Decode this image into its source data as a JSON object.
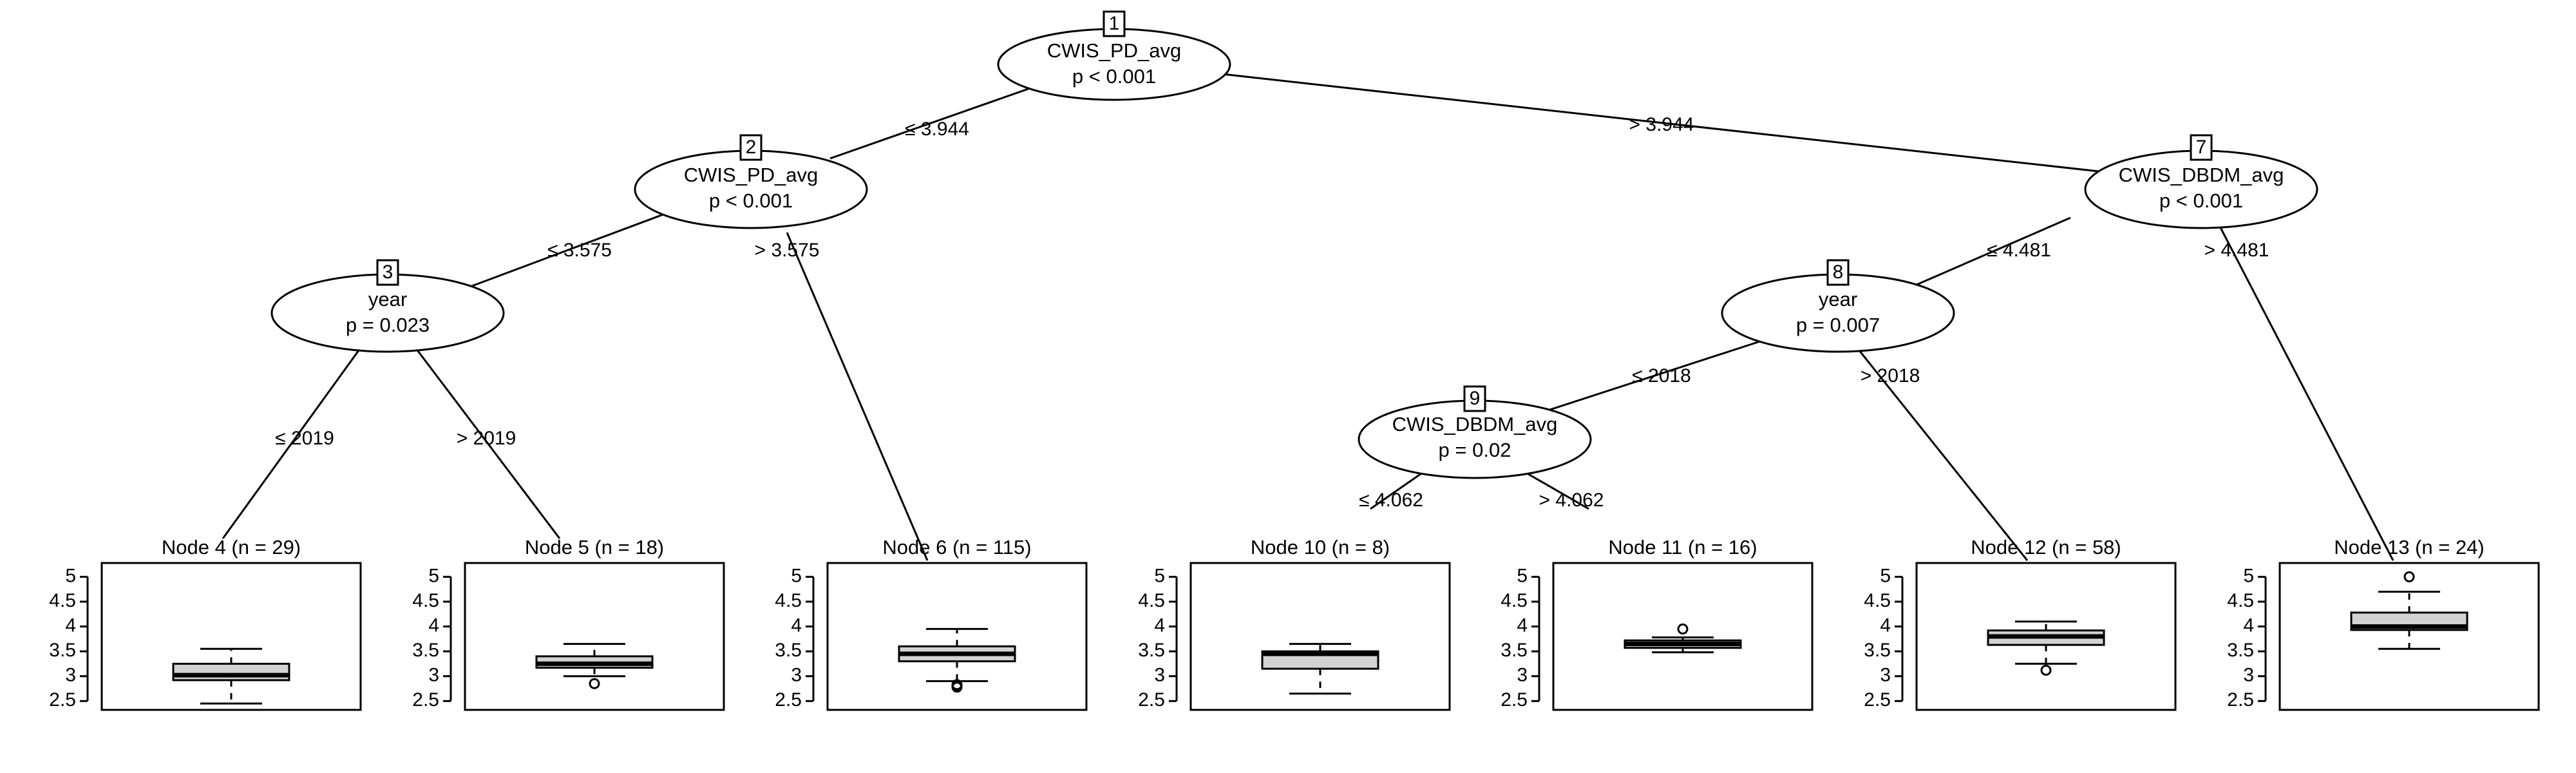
{
  "tree": {
    "colors": {
      "line": "#000000",
      "box_fill": "#d3d3d3",
      "background": "#ffffff"
    },
    "inner_nodes": [
      {
        "id": "1",
        "variable": "CWIS_PD_avg",
        "pvalue": "p < 0.001"
      },
      {
        "id": "2",
        "variable": "CWIS_PD_avg",
        "pvalue": "p < 0.001"
      },
      {
        "id": "3",
        "variable": "year",
        "pvalue": "p = 0.023"
      },
      {
        "id": "7",
        "variable": "CWIS_DBDM_avg",
        "pvalue": "p < 0.001"
      },
      {
        "id": "8",
        "variable": "year",
        "pvalue": "p = 0.007"
      },
      {
        "id": "9",
        "variable": "CWIS_DBDM_avg",
        "pvalue": "p = 0.02"
      }
    ],
    "edges": [
      {
        "from": "1",
        "to": "2",
        "label": "≤ 3.944"
      },
      {
        "from": "1",
        "to": "7",
        "label": "> 3.944"
      },
      {
        "from": "2",
        "to": "3",
        "label": "≤ 3.575"
      },
      {
        "from": "2",
        "to": "6",
        "label": "> 3.575"
      },
      {
        "from": "3",
        "to": "4",
        "label": "≤ 2019"
      },
      {
        "from": "3",
        "to": "5",
        "label": "> 2019"
      },
      {
        "from": "7",
        "to": "8",
        "label": "≤ 4.481"
      },
      {
        "from": "7",
        "to": "13",
        "label": "> 4.481"
      },
      {
        "from": "8",
        "to": "9",
        "label": "≤ 2018"
      },
      {
        "from": "8",
        "to": "12",
        "label": "> 2018"
      },
      {
        "from": "9",
        "to": "10",
        "label": "≤ 4.062"
      },
      {
        "from": "9",
        "to": "11",
        "label": "> 4.062"
      }
    ],
    "y_axis": {
      "ylim": [
        2.4,
        5.2
      ],
      "ticks": [
        2.5,
        3,
        3.5,
        4,
        4.5,
        5
      ],
      "tick_labels": [
        "2.5",
        "3",
        "3.5",
        "4",
        "4.5",
        "5"
      ]
    }
  },
  "chart_data": {
    "type": "boxplot",
    "ylim": [
      2.4,
      5.2
    ],
    "terminal_nodes": [
      {
        "node": "4",
        "title": "Node 4 (n = 29)",
        "n": 29,
        "low": 2.45,
        "q1": 2.92,
        "median": 3.02,
        "q3": 3.25,
        "high": 3.55,
        "outliers": []
      },
      {
        "node": "5",
        "title": "Node 5 (n = 18)",
        "n": 18,
        "low": 3.0,
        "q1": 3.17,
        "median": 3.25,
        "q3": 3.4,
        "high": 3.65,
        "outliers": [
          2.85
        ]
      },
      {
        "node": "6",
        "title": "Node 6 (n = 115)",
        "n": 115,
        "low": 2.9,
        "q1": 3.3,
        "median": 3.45,
        "q3": 3.6,
        "high": 3.95,
        "outliers": [
          2.83,
          2.8,
          2.78
        ]
      },
      {
        "node": "10",
        "title": "Node 10 (n = 8)",
        "n": 8,
        "low": 2.65,
        "q1": 3.15,
        "median": 3.45,
        "q3": 3.5,
        "high": 3.65,
        "outliers": []
      },
      {
        "node": "11",
        "title": "Node 11 (n = 16)",
        "n": 16,
        "low": 3.48,
        "q1": 3.57,
        "median": 3.65,
        "q3": 3.72,
        "high": 3.78,
        "outliers": [
          3.95
        ]
      },
      {
        "node": "12",
        "title": "Node 12 (n = 58)",
        "n": 58,
        "low": 3.25,
        "q1": 3.63,
        "median": 3.8,
        "q3": 3.92,
        "high": 4.1,
        "outliers": [
          3.12
        ]
      },
      {
        "node": "13",
        "title": "Node 13 (n = 24)",
        "n": 24,
        "low": 3.55,
        "q1": 3.93,
        "median": 4.0,
        "q3": 4.28,
        "high": 4.7,
        "outliers": [
          5.0
        ]
      }
    ]
  }
}
